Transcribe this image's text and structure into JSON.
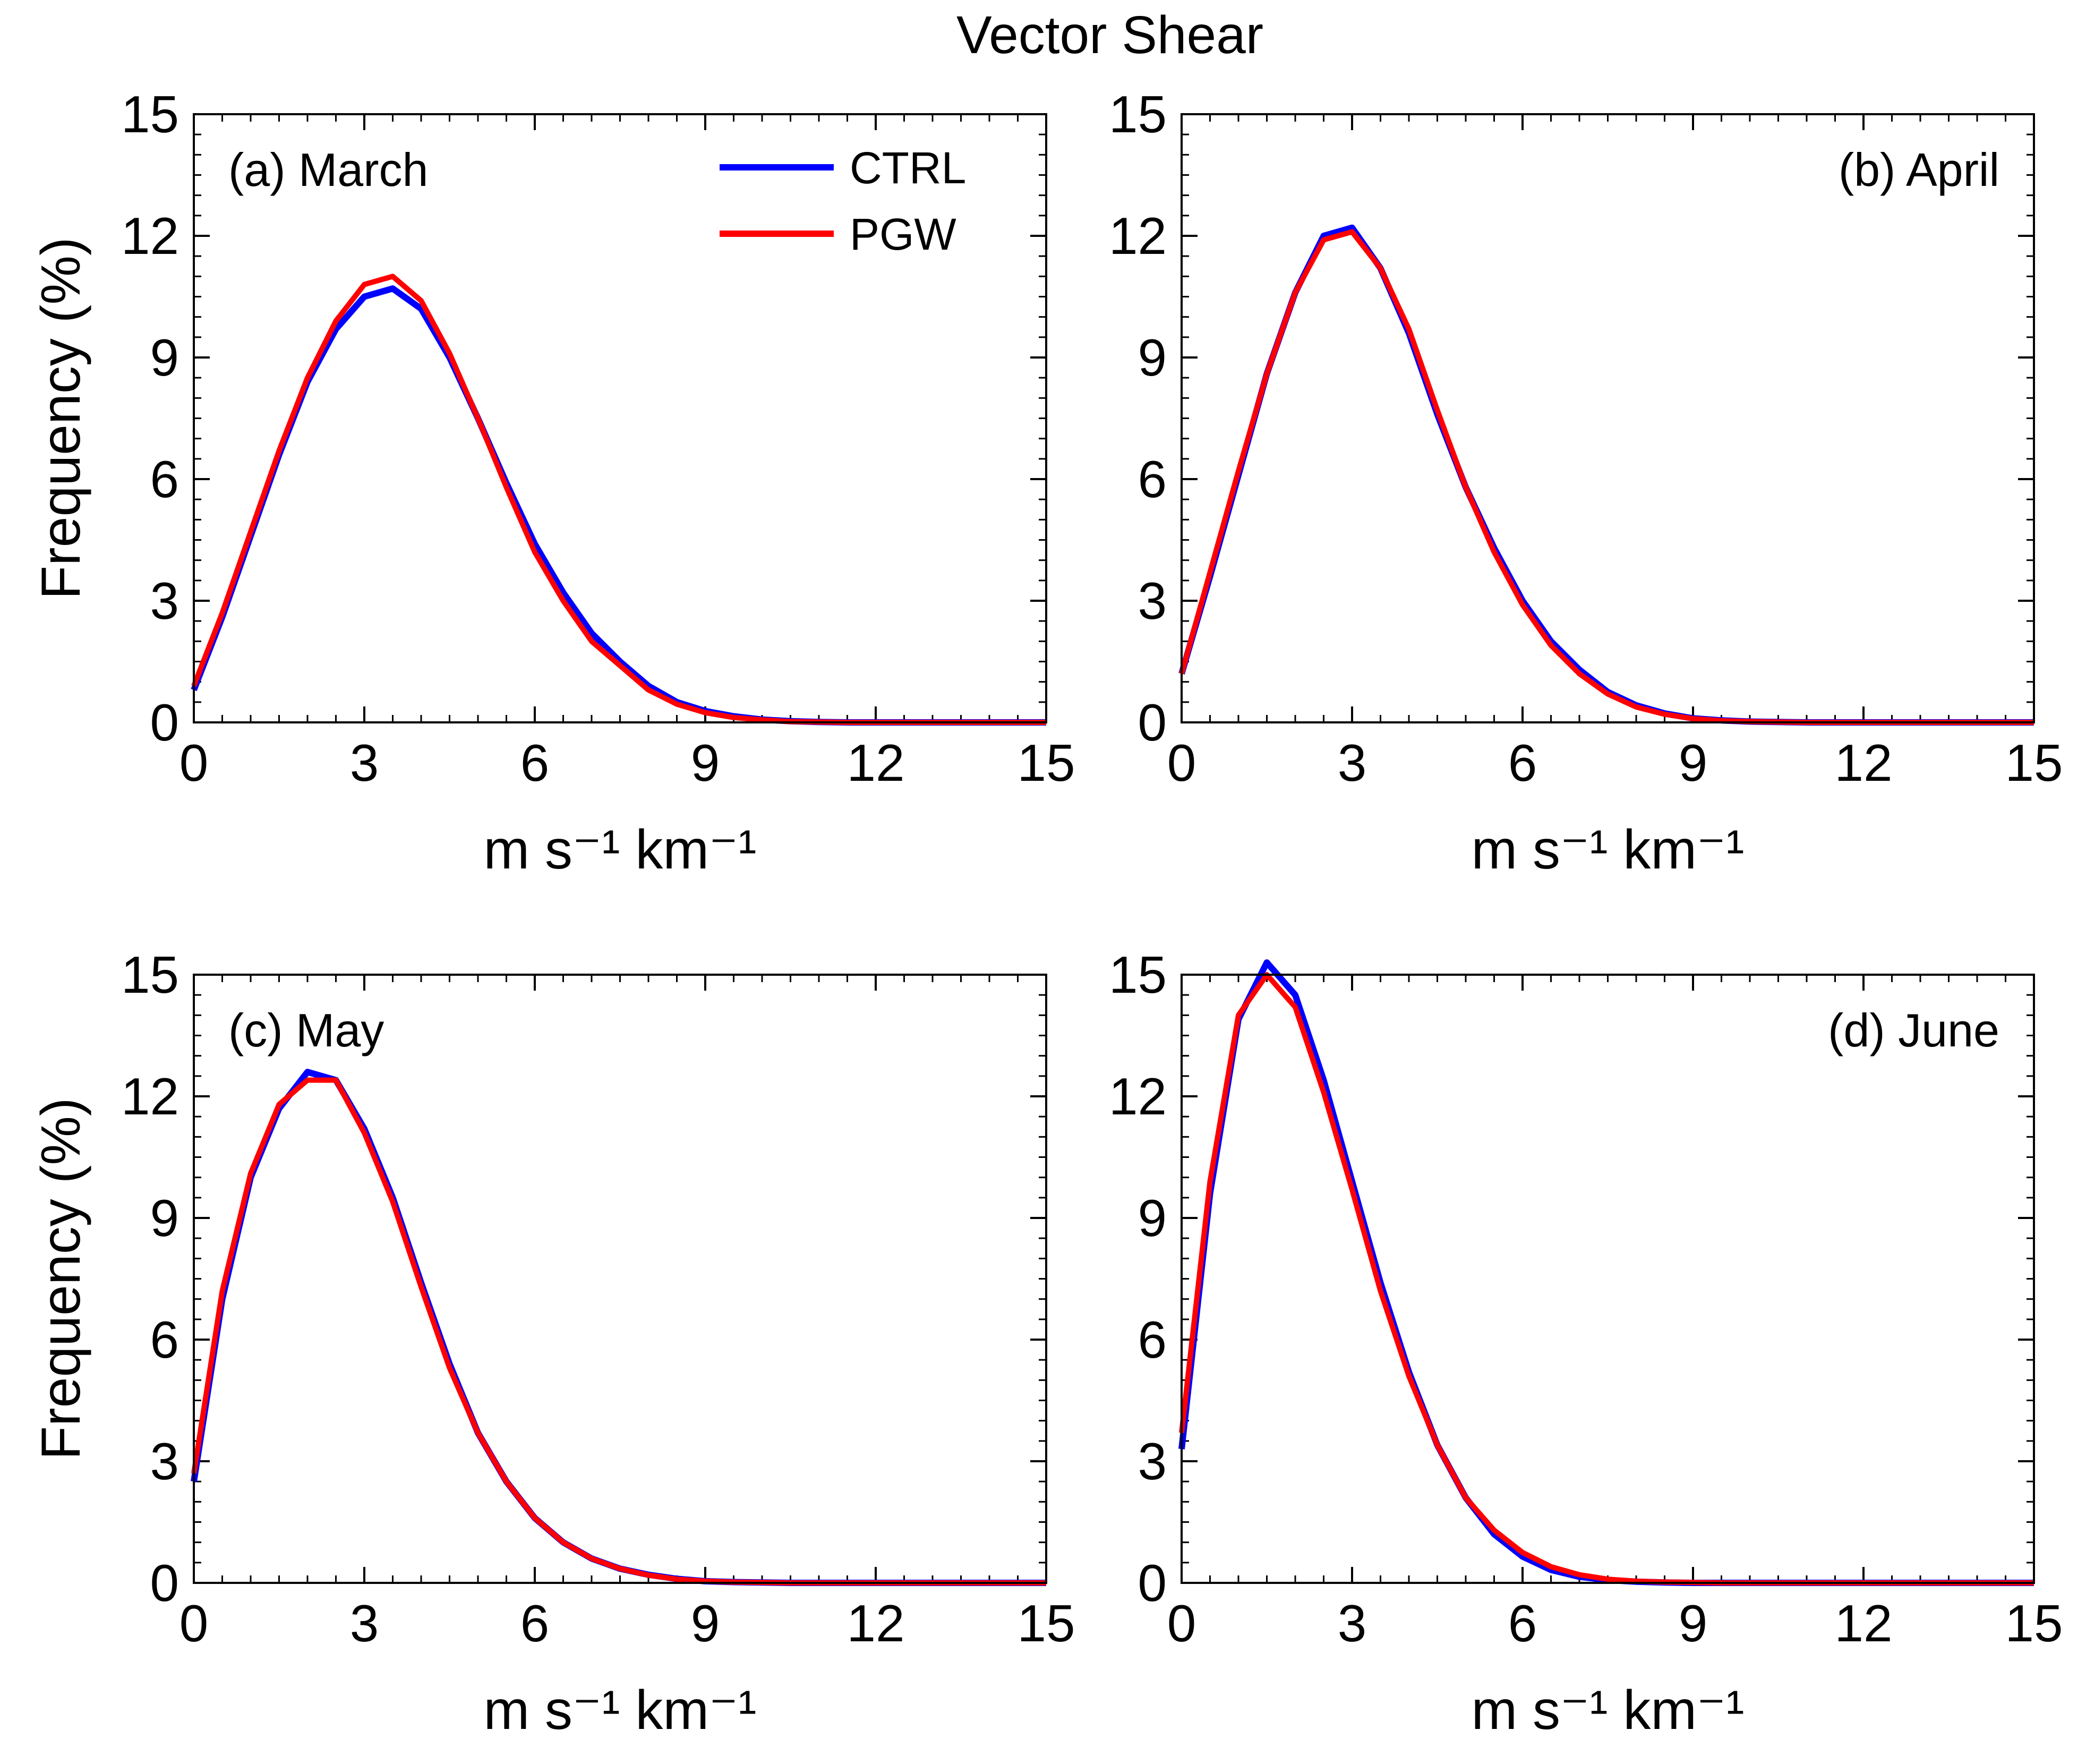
{
  "figure_title": "Vector Shear",
  "colors": {
    "ctrl": "#0000ff",
    "pgw": "#ff0000",
    "axis": "#000000"
  },
  "chart_data": [
    {
      "type": "line",
      "panel_label": "(a) March",
      "xlabel": "m s⁻¹ km⁻¹",
      "ylabel": "Frequency (%)",
      "xlim": [
        0,
        15
      ],
      "ylim": [
        0,
        15
      ],
      "xticks": [
        "0",
        "3",
        "6",
        "9",
        "12",
        "15"
      ],
      "yticks": [
        "0",
        "3",
        "6",
        "9",
        "12",
        "15"
      ],
      "legend": {
        "position": "top-center",
        "entries": [
          "CTRL",
          "PGW"
        ]
      },
      "x": [
        0,
        0.5,
        1,
        1.5,
        2,
        2.5,
        3,
        3.5,
        4,
        4.5,
        5,
        5.5,
        6,
        6.5,
        7,
        7.5,
        8,
        8.5,
        9,
        9.5,
        10,
        10.5,
        11,
        11.5,
        12,
        12.5,
        13,
        13.5,
        14,
        14.5,
        15
      ],
      "series": [
        {
          "name": "CTRL",
          "values": [
            0.8,
            2.6,
            4.6,
            6.6,
            8.4,
            9.7,
            10.5,
            10.7,
            10.2,
            9.0,
            7.5,
            5.9,
            4.4,
            3.2,
            2.2,
            1.5,
            0.9,
            0.5,
            0.28,
            0.15,
            0.07,
            0.03,
            0.01,
            0,
            0,
            0,
            0,
            0,
            0,
            0,
            0
          ]
        },
        {
          "name": "PGW",
          "values": [
            0.9,
            2.7,
            4.7,
            6.7,
            8.5,
            9.9,
            10.8,
            11.0,
            10.4,
            9.1,
            7.5,
            5.8,
            4.2,
            3.0,
            2.0,
            1.4,
            0.8,
            0.45,
            0.24,
            0.12,
            0.06,
            0.02,
            0.01,
            0,
            0,
            0,
            0,
            0,
            0,
            0,
            0
          ]
        }
      ]
    },
    {
      "type": "line",
      "panel_label": "(b) April",
      "xlabel": "m s⁻¹ km⁻¹",
      "ylabel": "",
      "xlim": [
        0,
        15
      ],
      "ylim": [
        0,
        15
      ],
      "xticks": [
        "0",
        "3",
        "6",
        "9",
        "12",
        "15"
      ],
      "yticks": [
        "0",
        "3",
        "6",
        "9",
        "12",
        "15"
      ],
      "x": [
        0,
        0.5,
        1,
        1.5,
        2,
        2.5,
        3,
        3.5,
        4,
        4.5,
        5,
        5.5,
        6,
        6.5,
        7,
        7.5,
        8,
        8.5,
        9,
        9.5,
        10,
        10.5,
        11,
        11.5,
        12,
        12.5,
        13,
        13.5,
        14,
        14.5,
        15
      ],
      "series": [
        {
          "name": "CTRL",
          "values": [
            1.2,
            3.6,
            6.1,
            8.6,
            10.6,
            12.0,
            12.2,
            11.2,
            9.6,
            7.6,
            5.8,
            4.3,
            3.0,
            2.0,
            1.3,
            0.75,
            0.42,
            0.22,
            0.1,
            0.05,
            0.02,
            0.01,
            0,
            0,
            0,
            0,
            0,
            0,
            0,
            0,
            0
          ]
        },
        {
          "name": "PGW",
          "values": [
            1.2,
            3.7,
            6.2,
            8.6,
            10.6,
            11.9,
            12.1,
            11.2,
            9.7,
            7.7,
            5.8,
            4.2,
            2.9,
            1.9,
            1.2,
            0.7,
            0.38,
            0.2,
            0.09,
            0.04,
            0.02,
            0.01,
            0,
            0,
            0,
            0,
            0,
            0,
            0,
            0,
            0
          ]
        }
      ]
    },
    {
      "type": "line",
      "panel_label": "(c) May",
      "xlabel": "m s⁻¹ km⁻¹",
      "ylabel": "Frequency (%)",
      "xlim": [
        0,
        15
      ],
      "ylim": [
        0,
        15
      ],
      "xticks": [
        "0",
        "3",
        "6",
        "9",
        "12",
        "15"
      ],
      "yticks": [
        "0",
        "3",
        "6",
        "9",
        "12",
        "15"
      ],
      "x": [
        0,
        0.5,
        1,
        1.5,
        2,
        2.5,
        3,
        3.5,
        4,
        4.5,
        5,
        5.5,
        6,
        6.5,
        7,
        7.5,
        8,
        8.5,
        9,
        9.5,
        10,
        10.5,
        11,
        11.5,
        12,
        12.5,
        13,
        13.5,
        14,
        14.5,
        15
      ],
      "series": [
        {
          "name": "CTRL",
          "values": [
            2.5,
            7.0,
            10.0,
            11.7,
            12.6,
            12.4,
            11.2,
            9.5,
            7.4,
            5.4,
            3.7,
            2.5,
            1.6,
            1.0,
            0.6,
            0.35,
            0.2,
            0.1,
            0.04,
            0.02,
            0.01,
            0,
            0,
            0,
            0,
            0,
            0,
            0,
            0,
            0,
            0
          ]
        },
        {
          "name": "PGW",
          "values": [
            2.7,
            7.2,
            10.1,
            11.8,
            12.4,
            12.4,
            11.1,
            9.4,
            7.3,
            5.3,
            3.7,
            2.5,
            1.6,
            1.0,
            0.6,
            0.35,
            0.19,
            0.09,
            0.04,
            0.02,
            0.01,
            0,
            0,
            0,
            0,
            0,
            0,
            0,
            0,
            0,
            0
          ]
        }
      ]
    },
    {
      "type": "line",
      "panel_label": "(d) June",
      "xlabel": "m s⁻¹ km⁻¹",
      "ylabel": "",
      "xlim": [
        0,
        15
      ],
      "ylim": [
        0,
        15
      ],
      "xticks": [
        "0",
        "3",
        "6",
        "9",
        "12",
        "15"
      ],
      "yticks": [
        "0",
        "3",
        "6",
        "9",
        "12",
        "15"
      ],
      "x": [
        0,
        0.5,
        1,
        1.5,
        2,
        2.5,
        3,
        3.5,
        4,
        4.5,
        5,
        5.5,
        6,
        6.5,
        7,
        7.5,
        8,
        8.5,
        9,
        9.5,
        10,
        10.5,
        11,
        11.5,
        12,
        12.5,
        13,
        13.5,
        14,
        14.5,
        15
      ],
      "series": [
        {
          "name": "CTRL",
          "values": [
            3.3,
            9.6,
            13.9,
            15.3,
            14.5,
            12.4,
            9.9,
            7.4,
            5.2,
            3.4,
            2.1,
            1.2,
            0.65,
            0.32,
            0.15,
            0.07,
            0.03,
            0.01,
            0,
            0,
            0,
            0,
            0,
            0,
            0,
            0,
            0,
            0,
            0,
            0,
            0
          ]
        },
        {
          "name": "PGW",
          "values": [
            3.7,
            9.9,
            14.0,
            15.0,
            14.2,
            12.1,
            9.7,
            7.2,
            5.1,
            3.4,
            2.1,
            1.3,
            0.75,
            0.4,
            0.2,
            0.09,
            0.04,
            0.02,
            0.01,
            0,
            0,
            0,
            0,
            0,
            0,
            0,
            0,
            0,
            0,
            0,
            0
          ]
        }
      ]
    }
  ]
}
